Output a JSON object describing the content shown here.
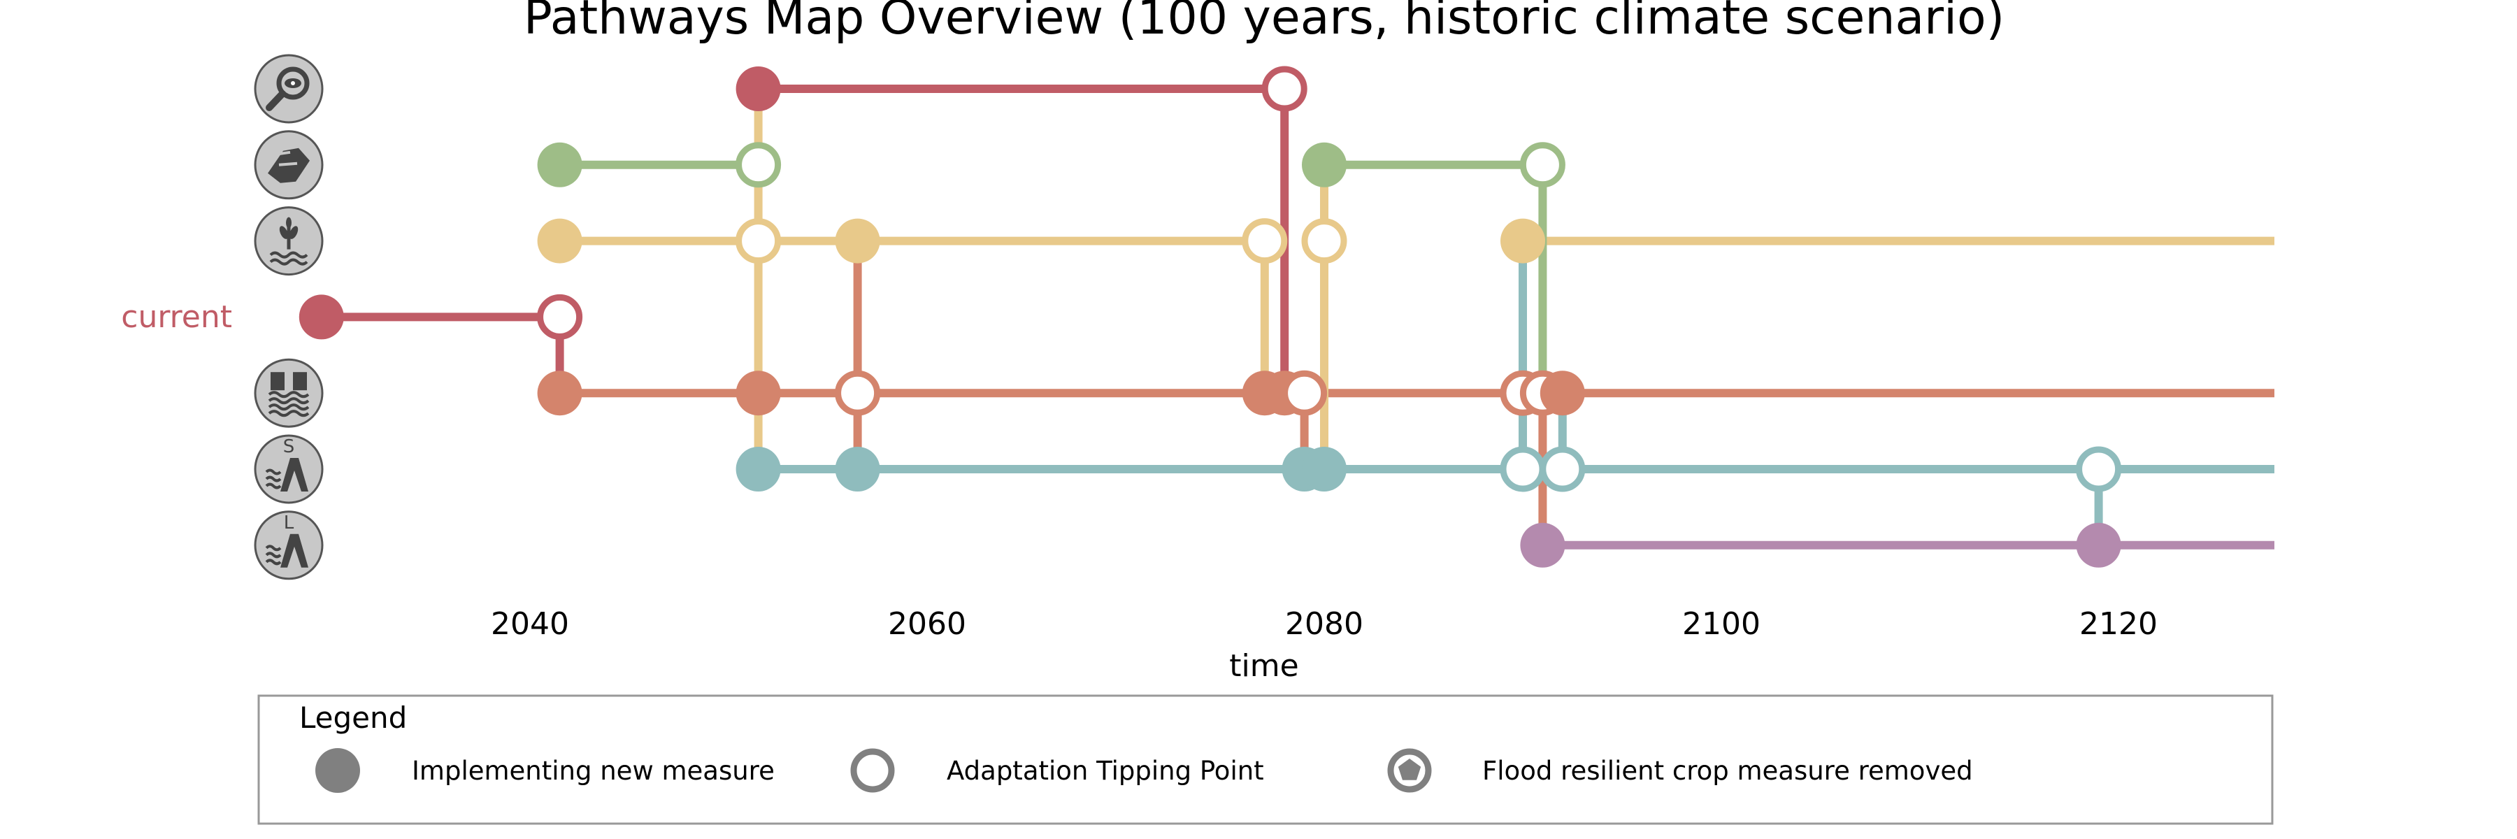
{
  "chart_data": {
    "type": "pathways_map",
    "title": "Pathways Map Overview (100 years, historic climate scenario)",
    "xlabel": "time",
    "xlim": [
      2027.5,
      2128
    ],
    "x_ticks": [
      2040,
      2060,
      2080,
      2100,
      2120
    ],
    "x_tick_labels": [
      "2040",
      "2060",
      "2080",
      "2100",
      "2120"
    ],
    "current_label": "current",
    "measures": [
      {
        "id": "monitoring",
        "row": 1,
        "icon": "magnifier-eye-icon",
        "color": "#c05c66"
      },
      {
        "id": "cooperation",
        "row": 2,
        "icon": "handshake-icon",
        "color": "#9ebd87"
      },
      {
        "id": "resilient_crops",
        "row": 3,
        "icon": "crop-water-icon",
        "color": "#e8c98a"
      },
      {
        "id": "current",
        "row": 4,
        "icon": "",
        "color": "#c05c66"
      },
      {
        "id": "flood_barrier",
        "row": 5,
        "icon": "flood-barrier-icon",
        "color": "#d4846c"
      },
      {
        "id": "small_dike",
        "row": 6,
        "icon": "dike-s-icon",
        "color": "#8fbcbd"
      },
      {
        "id": "large_dike",
        "row": 7,
        "icon": "dike-l-icon",
        "color": "#b48aae"
      }
    ],
    "segments": [
      {
        "color": "#c05c66",
        "row": 4,
        "x": [
          2029.5,
          2041.5
        ]
      },
      {
        "color": "#c05c66",
        "row": 1,
        "x": [
          2051.5,
          2078
        ]
      },
      {
        "color": "#9ebd87",
        "row": 2,
        "x": [
          2041.5,
          2051.5
        ]
      },
      {
        "color": "#9ebd87",
        "row": 2,
        "x": [
          2080,
          2091
        ]
      },
      {
        "color": "#e8c98a",
        "row": 3,
        "x": [
          2041.5,
          2077
        ]
      },
      {
        "color": "#e8c98a",
        "row": 3,
        "x": [
          2080,
          2080
        ]
      },
      {
        "color": "#e8c98a",
        "row": 3,
        "x": [
          2090,
          2128
        ]
      },
      {
        "color": "#d4846c",
        "row": 5,
        "x": [
          2041.5,
          2128
        ]
      },
      {
        "color": "#8fbcbd",
        "row": 6,
        "x": [
          2051.5,
          2128
        ]
      },
      {
        "color": "#b48aae",
        "row": 7,
        "x": [
          2091,
          2128
        ]
      }
    ],
    "transitions": [
      {
        "color": "#c05c66",
        "x": 2041.5,
        "from_row": 4,
        "to_row": 5
      },
      {
        "color": "#c05c66",
        "x": 2078,
        "from_row": 1,
        "to_row": 5
      },
      {
        "color": "#e8c98a",
        "x": 2051.5,
        "from_row": 1,
        "to_row": 6
      },
      {
        "color": "#e8c98a",
        "x": 2077,
        "from_row": 3,
        "to_row": 5
      },
      {
        "color": "#e8c98a",
        "x": 2080,
        "from_row": 2,
        "to_row": 6
      },
      {
        "color": "#d4846c",
        "x": 2056.5,
        "from_row": 3,
        "to_row": 6
      },
      {
        "color": "#d4846c",
        "x": 2079,
        "from_row": 5,
        "to_row": 6
      },
      {
        "color": "#d4846c",
        "x": 2091,
        "from_row": 5,
        "to_row": 7
      },
      {
        "color": "#8fbcbd",
        "x": 2090,
        "from_row": 3,
        "to_row": 6
      },
      {
        "color": "#8fbcbd",
        "x": 2092,
        "from_row": 5,
        "to_row": 6
      },
      {
        "color": "#8fbcbd",
        "x": 2119,
        "from_row": 6,
        "to_row": 7
      },
      {
        "color": "#9ebd87",
        "x": 2091,
        "from_row": 2,
        "to_row": 5
      }
    ],
    "points": [
      {
        "kind": "implement",
        "color": "#c05c66",
        "row": 4,
        "x": 2029.5
      },
      {
        "kind": "tipping",
        "color": "#c05c66",
        "row": 4,
        "x": 2041.5
      },
      {
        "kind": "implement",
        "color": "#9ebd87",
        "row": 2,
        "x": 2041.5
      },
      {
        "kind": "implement",
        "color": "#e8c98a",
        "row": 3,
        "x": 2041.5
      },
      {
        "kind": "implement",
        "color": "#d4846c",
        "row": 5,
        "x": 2041.5
      },
      {
        "kind": "implement",
        "color": "#c05c66",
        "row": 1,
        "x": 2051.5
      },
      {
        "kind": "tipping",
        "color": "#9ebd87",
        "row": 2,
        "x": 2051.5
      },
      {
        "kind": "tipping",
        "color": "#e8c98a",
        "row": 3,
        "x": 2051.5
      },
      {
        "kind": "implement",
        "color": "#d4846c",
        "row": 5,
        "x": 2051.5
      },
      {
        "kind": "implement",
        "color": "#8fbcbd",
        "row": 6,
        "x": 2051.5
      },
      {
        "kind": "implement",
        "color": "#e8c98a",
        "row": 3,
        "x": 2056.5
      },
      {
        "kind": "tipping",
        "color": "#d4846c",
        "row": 5,
        "x": 2056.5
      },
      {
        "kind": "implement",
        "color": "#8fbcbd",
        "row": 6,
        "x": 2056.5
      },
      {
        "kind": "tipping",
        "color": "#e8c98a",
        "row": 3,
        "x": 2077
      },
      {
        "kind": "implement",
        "color": "#d4846c",
        "row": 5,
        "x": 2077
      },
      {
        "kind": "implement",
        "color": "#d4846c",
        "row": 5,
        "x": 2078
      },
      {
        "kind": "tipping",
        "color": "#c05c66",
        "row": 1,
        "x": 2078
      },
      {
        "kind": "tipping",
        "color": "#d4846c",
        "row": 5,
        "x": 2079
      },
      {
        "kind": "implement",
        "color": "#8fbcbd",
        "row": 6,
        "x": 2079
      },
      {
        "kind": "implement",
        "color": "#8fbcbd",
        "row": 6,
        "x": 2080
      },
      {
        "kind": "implement",
        "color": "#9ebd87",
        "row": 2,
        "x": 2080
      },
      {
        "kind": "tipping",
        "color": "#e8c98a",
        "row": 3,
        "x": 2080
      },
      {
        "kind": "implement",
        "color": "#e8c98a",
        "row": 3,
        "x": 2090
      },
      {
        "kind": "tipping",
        "color": "#d4846c",
        "row": 5,
        "x": 2090
      },
      {
        "kind": "tipping",
        "color": "#8fbcbd",
        "row": 6,
        "x": 2090
      },
      {
        "kind": "tipping",
        "color": "#9ebd87",
        "row": 2,
        "x": 2091
      },
      {
        "kind": "tipping",
        "color": "#d4846c",
        "row": 5,
        "x": 2091
      },
      {
        "kind": "implement",
        "color": "#d4846c",
        "row": 5,
        "x": 2092
      },
      {
        "kind": "tipping",
        "color": "#8fbcbd",
        "row": 6,
        "x": 2092
      },
      {
        "kind": "implement",
        "color": "#b48aae",
        "row": 7,
        "x": 2091
      },
      {
        "kind": "tipping",
        "color": "#8fbcbd",
        "row": 6,
        "x": 2119
      },
      {
        "kind": "implement",
        "color": "#b48aae",
        "row": 7,
        "x": 2119
      }
    ],
    "legend": {
      "title": "Legend",
      "entries": [
        {
          "kind": "implement",
          "label": "Implementing new measure"
        },
        {
          "kind": "tipping",
          "label": "Adaptation Tipping Point"
        },
        {
          "kind": "removed",
          "label": "Flood resilient crop measure removed"
        }
      ]
    }
  },
  "colors": {
    "legend_marker": "#808080",
    "icon_fill": "#c8c8c8",
    "icon_stroke": "#555555",
    "icon_glyph": "#444444"
  },
  "icon_letters": {
    "small_dike": "S",
    "large_dike": "L"
  }
}
